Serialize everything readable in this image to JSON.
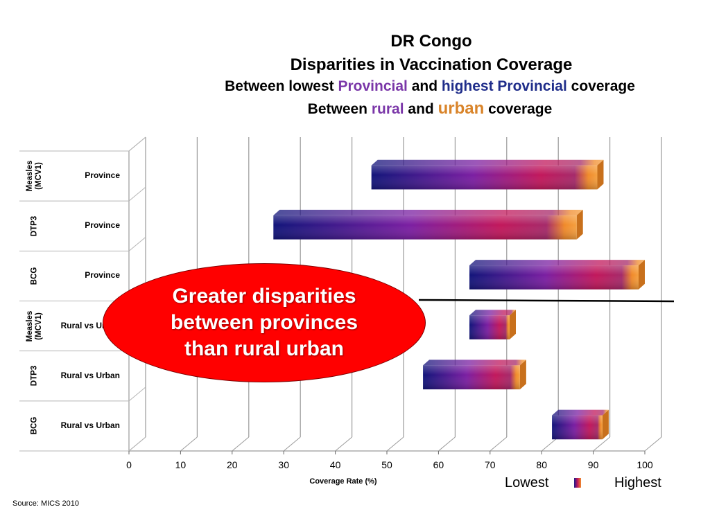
{
  "title": {
    "line1": "DR Congo",
    "line2": "Disparities in Vaccination Coverage",
    "line3": {
      "a": "Between lowest",
      "b": "Provincial",
      "c": "and",
      "d": "highest Provincial",
      "e": "coverage"
    },
    "line4": {
      "a": "Between",
      "b": "rural",
      "c": "and",
      "d": "urban",
      "e": "coverage"
    }
  },
  "callout": "Greater disparities between provinces than rural urban",
  "legend": {
    "low": "Lowest",
    "high": "Highest"
  },
  "source": "Source: MICS 2010",
  "colors": {
    "low": "#1c1a8c",
    "mid": "#7b1fa2",
    "high": "#c2185b",
    "top": "#f08a2a"
  },
  "chart_data": {
    "type": "bar",
    "orientation": "horizontal",
    "style": "3d floating range bars",
    "xlabel": "Coverage Rate (%)",
    "xlim": [
      0,
      100
    ],
    "xticks": [
      0,
      10,
      20,
      30,
      40,
      50,
      60,
      70,
      80,
      90,
      100
    ],
    "grid": true,
    "rows": [
      {
        "group": "Measles (MCV1)",
        "category": "Province",
        "low": 47,
        "high": 92
      },
      {
        "group": "DTP3",
        "category": "Province",
        "low": 28,
        "high": 88
      },
      {
        "group": "BCG",
        "category": "Province",
        "low": 66,
        "high": 100
      },
      {
        "group": "Measles (MCV1)",
        "category": "Rural vs Urban",
        "low": 66,
        "high": 75
      },
      {
        "group": "DTP3",
        "category": "Rural vs Urban",
        "low": 57,
        "high": 77
      },
      {
        "group": "BCG",
        "category": "Rural vs Urban",
        "low": 82,
        "high": 93
      }
    ]
  }
}
